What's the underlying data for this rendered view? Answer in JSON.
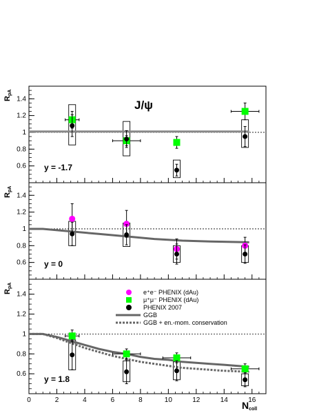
{
  "chart_data": {
    "type": "scatter",
    "title": "J/ψ",
    "xlabel": "N",
    "xlabel_sub": "coll",
    "ylabel": "R",
    "ylabel_sub": "pA",
    "xlim": [
      0,
      17
    ],
    "x_ticks": [
      "0",
      "2",
      "4",
      "6",
      "8",
      "10",
      "12",
      "14",
      "16"
    ],
    "legend": {
      "placement": "bottom-panel top-center",
      "entries": [
        {
          "label": "e⁺e⁻ PHENIX (dAu)",
          "marker": "circle",
          "color": "#ff00ff"
        },
        {
          "label": "μ⁺μ⁻ PHENIX (dAu)",
          "marker": "square",
          "color": "#00ff00"
        },
        {
          "label": "PHENIX 2007",
          "marker": "circle",
          "color": "#000000"
        },
        {
          "label": "GGB",
          "marker": "line-solid",
          "color": "#666666"
        },
        {
          "label": "GGB + en.-mom. conservation",
          "marker": "line-dashed",
          "color": "#666666"
        }
      ]
    },
    "panels": [
      {
        "label": "y = -1.7",
        "ylim": [
          0.4,
          1.55
        ],
        "y_ticks": [
          "0.6",
          "0.8",
          "1",
          "1.2",
          "1.4"
        ],
        "reference_line": 1.0,
        "series": [
          {
            "name": "μ⁺μ⁻ PHENIX (dAu)",
            "marker": "square",
            "color": "#00ff00",
            "x": [
              3.1,
              7.0,
              10.6,
              15.5
            ],
            "y": [
              1.15,
              0.9,
              0.88,
              1.25
            ],
            "yerr": [
              0.1,
              0.06,
              0.07,
              0.1
            ],
            "xerr": [
              0.5,
              1.0,
              0.0,
              1.0
            ]
          },
          {
            "name": "PHENIX 2007",
            "marker": "circle",
            "color": "#000000",
            "x": [
              3.1,
              7.0,
              10.6,
              15.5
            ],
            "y": [
              1.08,
              0.92,
              0.55,
              0.95
            ],
            "yerr": [
              0.13,
              0.1,
              0.07,
              0.12
            ],
            "syst_low": [
              0.85,
              0.72,
              0.46,
              0.82
            ],
            "syst_high": [
              1.33,
              1.13,
              0.67,
              1.15
            ]
          },
          {
            "name": "GGB",
            "marker": "line-solid",
            "color": "#888888",
            "x": [
              0,
              15.8
            ],
            "y": [
              1.01,
              1.01
            ]
          }
        ]
      },
      {
        "label": "y = 0",
        "ylim": [
          0.4,
          1.55
        ],
        "y_ticks": [
          "0.6",
          "0.8",
          "1",
          "1.2",
          "1.4"
        ],
        "reference_line": 1.0,
        "series": [
          {
            "name": "e⁺e⁻ PHENIX (dAu)",
            "marker": "circle",
            "color": "#ff00ff",
            "x": [
              3.1,
              7.0,
              10.6,
              15.5
            ],
            "y": [
              1.12,
              1.06,
              0.76,
              0.8
            ],
            "yerr": [
              0.18,
              0.16,
              0.12,
              0.1
            ]
          },
          {
            "name": "PHENIX 2007",
            "marker": "circle",
            "color": "#000000",
            "x": [
              3.1,
              7.0,
              10.6,
              15.5
            ],
            "y": [
              0.94,
              0.93,
              0.7,
              0.7
            ],
            "yerr": [
              0.14,
              0.12,
              0.12,
              0.11
            ],
            "syst_low": [
              0.8,
              0.79,
              0.6,
              0.6
            ],
            "syst_high": [
              1.09,
              1.07,
              0.8,
              0.8
            ]
          },
          {
            "name": "GGB",
            "marker": "line-solid",
            "color": "#666666",
            "x": [
              0,
              1,
              3,
              5,
              7,
              9,
              11,
              13,
              15.8
            ],
            "y": [
              1.0,
              1.0,
              0.97,
              0.94,
              0.91,
              0.88,
              0.86,
              0.85,
              0.84
            ]
          }
        ]
      },
      {
        "label": "y = 1.8",
        "ylim": [
          0.4,
          1.55
        ],
        "y_ticks": [
          "0.6",
          "0.8",
          "1",
          "1.2",
          "1.4"
        ],
        "reference_line": 1.0,
        "series": [
          {
            "name": "μ⁺μ⁻ PHENIX (dAu)",
            "marker": "square",
            "color": "#00ff00",
            "x": [
              3.1,
              7.0,
              10.6,
              15.5
            ],
            "y": [
              0.98,
              0.8,
              0.76,
              0.65
            ],
            "yerr": [
              0.06,
              0.05,
              0.05,
              0.05
            ],
            "xerr": [
              0.5,
              1.0,
              1.0,
              1.0
            ]
          },
          {
            "name": "PHENIX 2007",
            "marker": "circle",
            "color": "#000000",
            "x": [
              3.1,
              7.0,
              10.6,
              15.5
            ],
            "y": [
              0.79,
              0.62,
              0.63,
              0.54
            ],
            "yerr": [
              0.15,
              0.12,
              0.1,
              0.07
            ],
            "syst_low": [
              0.64,
              0.52,
              0.54,
              0.48
            ],
            "syst_high": [
              0.94,
              0.73,
              0.72,
              0.6
            ]
          },
          {
            "name": "GGB",
            "marker": "line-solid",
            "color": "#666666",
            "x": [
              0,
              1,
              2,
              3,
              4,
              5,
              6,
              7,
              8,
              9,
              10,
              11,
              12,
              13,
              14,
              15.8
            ],
            "y": [
              1.0,
              1.0,
              0.97,
              0.93,
              0.89,
              0.85,
              0.82,
              0.8,
              0.77,
              0.75,
              0.74,
              0.72,
              0.71,
              0.7,
              0.69,
              0.67
            ]
          },
          {
            "name": "GGB + en.-mom. conservation",
            "marker": "line-dashed",
            "color": "#666666",
            "x": [
              0,
              1,
              2,
              3,
              4,
              5,
              6,
              7,
              8,
              9,
              10,
              11,
              12,
              13,
              14,
              15.8
            ],
            "y": [
              1.0,
              1.0,
              0.96,
              0.91,
              0.86,
              0.82,
              0.78,
              0.75,
              0.72,
              0.7,
              0.68,
              0.66,
              0.65,
              0.64,
              0.63,
              0.62
            ]
          }
        ]
      }
    ]
  }
}
